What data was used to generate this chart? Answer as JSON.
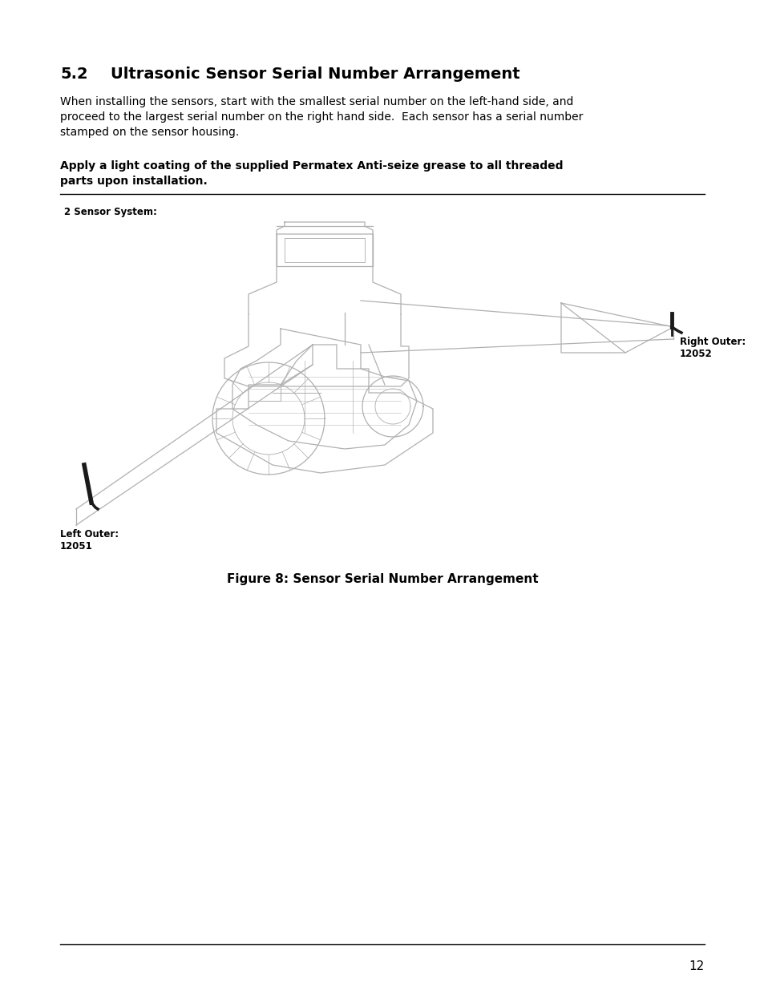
{
  "page_background": "#ffffff",
  "section_number": "5.2",
  "section_title": "Ultrasonic Sensor Serial Number Arrangement",
  "body_text_line1": "When installing the sensors, start with the smallest serial number on the left-hand side, and",
  "body_text_line2": "proceed to the largest serial number on the right hand side.  Each sensor has a serial number",
  "body_text_line3": "stamped on the sensor housing.",
  "bold_text_line1": "Apply a light coating of the supplied Permatex Anti-seize grease to all threaded",
  "bold_text_line2": "parts upon installation.",
  "diagram_label": "2 Sensor System:",
  "right_outer_label": "Right Outer:",
  "right_outer_number": "12052",
  "left_outer_label": "Left Outer:",
  "left_outer_number": "12051",
  "figure_caption": "Figure 8: Sensor Serial Number Arrangement",
  "page_number": "12",
  "text_color": "#000000",
  "gray_color": "#b0b0b0",
  "dark_color": "#1a1a1a"
}
